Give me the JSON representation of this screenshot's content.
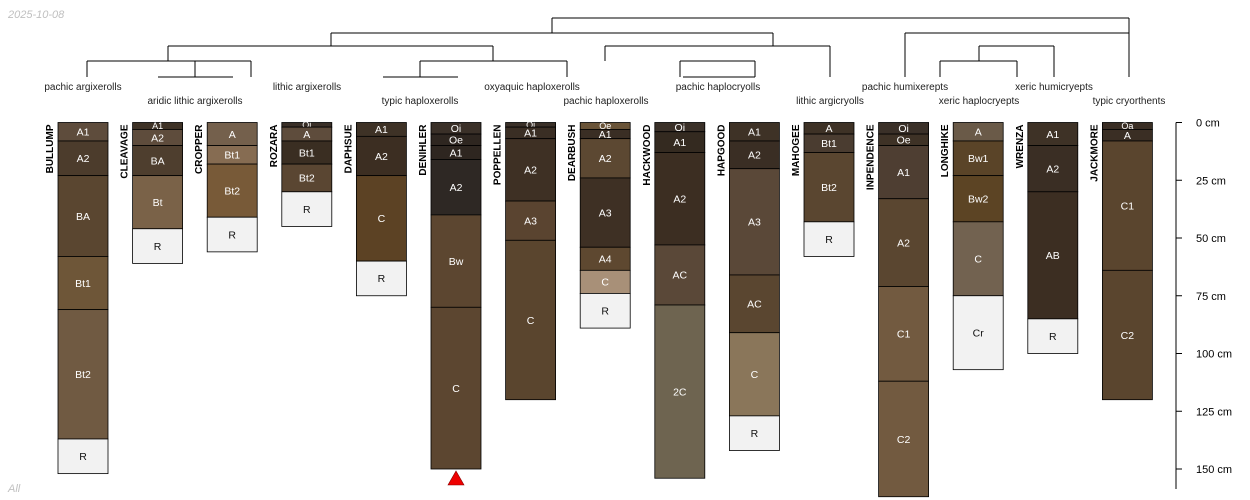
{
  "corner_top": "2025-10-08",
  "corner_bottom": "All",
  "chart_data": {
    "type": "soil-profile-sketch",
    "depth_unit": "cm",
    "depth_ticks": [
      {
        "value": 0,
        "label": "0 cm"
      },
      {
        "value": 25,
        "label": "25 cm"
      },
      {
        "value": 50,
        "label": "50 cm"
      },
      {
        "value": 75,
        "label": "75 cm"
      },
      {
        "value": 100,
        "label": "100 cm"
      },
      {
        "value": 125,
        "label": "125 cm"
      },
      {
        "value": 150,
        "label": "150 cm"
      }
    ],
    "profiles": [
      {
        "name": "BULLUMP",
        "group": "pachic argixerolls",
        "horizons": [
          {
            "name": "A1",
            "top": 0,
            "bottom": 8,
            "color": "#5e4c3c"
          },
          {
            "name": "A2",
            "top": 8,
            "bottom": 23,
            "color": "#4c3c2c"
          },
          {
            "name": "BA",
            "top": 23,
            "bottom": 58,
            "color": "#5a4630"
          },
          {
            "name": "Bt1",
            "top": 58,
            "bottom": 81,
            "color": "#6e5638"
          },
          {
            "name": "Bt2",
            "top": 81,
            "bottom": 137,
            "color": "#705a42"
          },
          {
            "name": "R",
            "top": 137,
            "bottom": 152,
            "color": "#f2f2f2"
          }
        ]
      },
      {
        "name": "CLEAVAGE",
        "group": "aridic lithic argixerolls",
        "horizons": [
          {
            "name": "A1",
            "top": 0,
            "bottom": 3,
            "color": "#3e3226"
          },
          {
            "name": "A2",
            "top": 3,
            "bottom": 10,
            "color": "#5e4c3c"
          },
          {
            "name": "BA",
            "top": 10,
            "bottom": 23,
            "color": "#4e3e2e"
          },
          {
            "name": "Bt",
            "top": 23,
            "bottom": 46,
            "color": "#7a6248"
          },
          {
            "name": "R",
            "top": 46,
            "bottom": 61,
            "color": "#f2f2f2"
          }
        ]
      },
      {
        "name": "CROPPER",
        "group": "",
        "horizons": [
          {
            "name": "A",
            "top": 0,
            "bottom": 10,
            "color": "#74604c"
          },
          {
            "name": "Bt1",
            "top": 10,
            "bottom": 18,
            "color": "#866c52"
          },
          {
            "name": "Bt2",
            "top": 18,
            "bottom": 41,
            "color": "#785a38"
          },
          {
            "name": "R",
            "top": 41,
            "bottom": 56,
            "color": "#f2f2f2"
          }
        ]
      },
      {
        "name": "ROZARA",
        "group": "lithic argixerolls",
        "horizons": [
          {
            "name": "Oi",
            "top": 0,
            "bottom": 2,
            "color": "#3a3028"
          },
          {
            "name": "A",
            "top": 2,
            "bottom": 8,
            "color": "#5e4c3c"
          },
          {
            "name": "Bt1",
            "top": 8,
            "bottom": 18,
            "color": "#3a2e22"
          },
          {
            "name": "Bt2",
            "top": 18,
            "bottom": 30,
            "color": "#5a4632"
          },
          {
            "name": "R",
            "top": 30,
            "bottom": 45,
            "color": "#f2f2f2"
          }
        ]
      },
      {
        "name": "DAPHSUE",
        "group": "typic haploxerolls",
        "horizons": [
          {
            "name": "A1",
            "top": 0,
            "bottom": 6,
            "color": "#3e3226"
          },
          {
            "name": "A2",
            "top": 6,
            "bottom": 23,
            "color": "#3c2e22"
          },
          {
            "name": "C",
            "top": 23,
            "bottom": 60,
            "color": "#5c4224"
          },
          {
            "name": "R",
            "top": 60,
            "bottom": 75,
            "color": "#f2f2f2"
          }
        ]
      },
      {
        "name": "DENIHLER",
        "group": "",
        "bottom_marker": true,
        "horizons": [
          {
            "name": "Oi",
            "top": 0,
            "bottom": 5,
            "color": "#3a3028"
          },
          {
            "name": "Oe",
            "top": 5,
            "bottom": 10,
            "color": "#2e2620"
          },
          {
            "name": "A1",
            "top": 10,
            "bottom": 16,
            "color": "#2e2620"
          },
          {
            "name": "A2",
            "top": 16,
            "bottom": 40,
            "color": "#2e2824"
          },
          {
            "name": "Bw",
            "top": 40,
            "bottom": 80,
            "color": "#5c4630"
          },
          {
            "name": "C",
            "top": 80,
            "bottom": 150,
            "color": "#5c4630"
          }
        ]
      },
      {
        "name": "POPPELLEN",
        "group": "oxyaquic haploxerolls",
        "horizons": [
          {
            "name": "Oi",
            "top": 0,
            "bottom": 2,
            "color": "#3a3028"
          },
          {
            "name": "A1",
            "top": 2,
            "bottom": 7,
            "color": "#3a2e24"
          },
          {
            "name": "A2",
            "top": 7,
            "bottom": 34,
            "color": "#3e3024"
          },
          {
            "name": "A3",
            "top": 34,
            "bottom": 51,
            "color": "#5a4430"
          },
          {
            "name": "C",
            "top": 51,
            "bottom": 120,
            "color": "#5a452e"
          }
        ]
      },
      {
        "name": "DEARBUSH",
        "group": "pachic haploxerolls",
        "horizons": [
          {
            "name": "Oe",
            "top": 0,
            "bottom": 3,
            "color": "#6a5438"
          },
          {
            "name": "A1",
            "top": 3,
            "bottom": 7,
            "color": "#3a2e24"
          },
          {
            "name": "A2",
            "top": 7,
            "bottom": 24,
            "color": "#5c4832"
          },
          {
            "name": "A3",
            "top": 24,
            "bottom": 54,
            "color": "#3e3024"
          },
          {
            "name": "A4",
            "top": 54,
            "bottom": 64,
            "color": "#5e4830"
          },
          {
            "name": "C",
            "top": 64,
            "bottom": 74,
            "color": "#a89078"
          },
          {
            "name": "R",
            "top": 74,
            "bottom": 89,
            "color": "#f2f2f2"
          }
        ]
      },
      {
        "name": "HACKWOOD",
        "group": "pachic haplocryolls",
        "horizons": [
          {
            "name": "Oi",
            "top": 0,
            "bottom": 4,
            "color": "#3a3028"
          },
          {
            "name": "A1",
            "top": 4,
            "bottom": 13,
            "color": "#342a20"
          },
          {
            "name": "A2",
            "top": 13,
            "bottom": 53,
            "color": "#3c2e22"
          },
          {
            "name": "AC",
            "top": 53,
            "bottom": 79,
            "color": "#5a4838"
          },
          {
            "name": "2C",
            "top": 79,
            "bottom": 154,
            "color": "#6e6450"
          }
        ]
      },
      {
        "name": "HAPGOOD",
        "group": "",
        "horizons": [
          {
            "name": "A1",
            "top": 0,
            "bottom": 8,
            "color": "#3e3226"
          },
          {
            "name": "A2",
            "top": 8,
            "bottom": 20,
            "color": "#3a2e24"
          },
          {
            "name": "A3",
            "top": 20,
            "bottom": 66,
            "color": "#5a4838"
          },
          {
            "name": "AC",
            "top": 66,
            "bottom": 91,
            "color": "#5a4630"
          },
          {
            "name": "C",
            "top": 91,
            "bottom": 127,
            "color": "#8a765a"
          },
          {
            "name": "R",
            "top": 127,
            "bottom": 142,
            "color": "#f2f2f2"
          }
        ]
      },
      {
        "name": "MAHOGEE",
        "group": "lithic argicryolls",
        "horizons": [
          {
            "name": "A",
            "top": 0,
            "bottom": 5,
            "color": "#3e3226"
          },
          {
            "name": "Bt1",
            "top": 5,
            "bottom": 13,
            "color": "#4a3c30"
          },
          {
            "name": "Bt2",
            "top": 13,
            "bottom": 43,
            "color": "#5a4630"
          },
          {
            "name": "R",
            "top": 43,
            "bottom": 58,
            "color": "#f2f2f2"
          }
        ]
      },
      {
        "name": "INPENDENCE",
        "group": "pachic humixerepts",
        "horizons": [
          {
            "name": "Oi",
            "top": 0,
            "bottom": 5,
            "color": "#3a3028"
          },
          {
            "name": "Oe",
            "top": 5,
            "bottom": 10,
            "color": "#3e3226"
          },
          {
            "name": "A1",
            "top": 10,
            "bottom": 33,
            "color": "#4e3e32"
          },
          {
            "name": "A2",
            "top": 33,
            "bottom": 71,
            "color": "#5a4630"
          },
          {
            "name": "C1",
            "top": 71,
            "bottom": 112,
            "color": "#725a40"
          },
          {
            "name": "C2",
            "top": 112,
            "bottom": 162,
            "color": "#725a40"
          }
        ]
      },
      {
        "name": "LONGHIKE",
        "group": "xeric haplocryepts",
        "horizons": [
          {
            "name": "A",
            "top": 0,
            "bottom": 8,
            "color": "#6a5a48"
          },
          {
            "name": "Bw1",
            "top": 8,
            "bottom": 23,
            "color": "#5a4428"
          },
          {
            "name": "Bw2",
            "top": 23,
            "bottom": 43,
            "color": "#5c4424"
          },
          {
            "name": "C",
            "top": 43,
            "bottom": 75,
            "color": "#726250"
          },
          {
            "name": "Cr",
            "top": 75,
            "bottom": 107,
            "color": "#f2f2f2"
          }
        ]
      },
      {
        "name": "WRENZA",
        "group": "xeric humicryepts",
        "horizons": [
          {
            "name": "A1",
            "top": 0,
            "bottom": 10,
            "color": "#3e3226"
          },
          {
            "name": "A2",
            "top": 10,
            "bottom": 30,
            "color": "#3a2e24"
          },
          {
            "name": "AB",
            "top": 30,
            "bottom": 85,
            "color": "#3c2e22"
          },
          {
            "name": "R",
            "top": 85,
            "bottom": 100,
            "color": "#f2f2f2"
          }
        ]
      },
      {
        "name": "JACKMORE",
        "group": "typic cryorthents",
        "horizons": [
          {
            "name": "Oa",
            "top": 0,
            "bottom": 3,
            "color": "#3a2e24"
          },
          {
            "name": "A",
            "top": 3,
            "bottom": 8,
            "color": "#3a2e24"
          },
          {
            "name": "C1",
            "top": 8,
            "bottom": 64,
            "color": "#5a452e"
          },
          {
            "name": "C2",
            "top": 64,
            "bottom": 120,
            "color": "#5a452e"
          }
        ]
      }
    ]
  }
}
